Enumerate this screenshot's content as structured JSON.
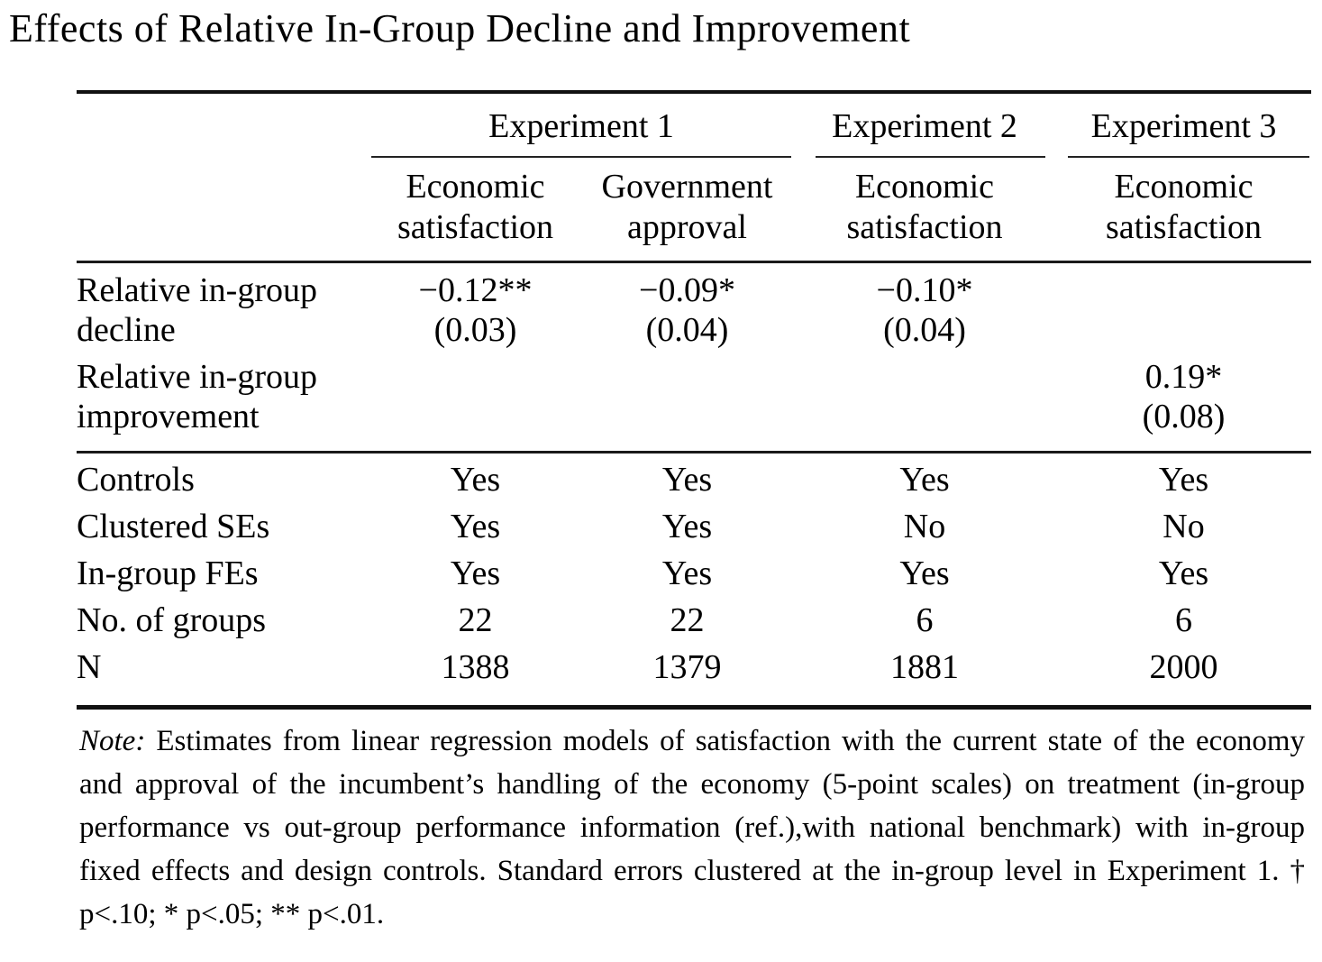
{
  "title": "Effects of Relative In-Group Decline and Improvement",
  "colors": {
    "text": "#000000",
    "background": "#ffffff",
    "rule": "#111111"
  },
  "table": {
    "experiment_groups": [
      {
        "label": "Experiment 1"
      },
      {
        "label": "Experiment 2"
      },
      {
        "label": "Experiment 3"
      }
    ],
    "column_headers": [
      {
        "line1": "Economic",
        "line2": "satisfaction"
      },
      {
        "line1": "Government",
        "line2": "approval"
      },
      {
        "line1": "Economic",
        "line2": "satisfaction"
      },
      {
        "line1": "Economic",
        "line2": "satisfaction"
      }
    ],
    "coefficient_rows": [
      {
        "label_line1": "Relative in-group",
        "label_line2": "decline",
        "cells": [
          {
            "estimate": "−0.12**",
            "se": "(0.03)"
          },
          {
            "estimate": "−0.09*",
            "se": "(0.04)"
          },
          {
            "estimate": "−0.10*",
            "se": "(0.04)"
          },
          {
            "estimate": "",
            "se": ""
          }
        ]
      },
      {
        "label_line1": "Relative in-group",
        "label_line2": "improvement",
        "cells": [
          {
            "estimate": "",
            "se": ""
          },
          {
            "estimate": "",
            "se": ""
          },
          {
            "estimate": "",
            "se": ""
          },
          {
            "estimate": "0.19*",
            "se": "(0.08)"
          }
        ]
      }
    ],
    "summary_rows": [
      {
        "label": "Controls",
        "values": [
          "Yes",
          "Yes",
          "Yes",
          "Yes"
        ]
      },
      {
        "label": "Clustered SEs",
        "values": [
          "Yes",
          "Yes",
          "No",
          "No"
        ]
      },
      {
        "label": "In-group FEs",
        "values": [
          "Yes",
          "Yes",
          "Yes",
          "Yes"
        ]
      },
      {
        "label": "No. of groups",
        "values": [
          "22",
          "22",
          "6",
          "6"
        ]
      },
      {
        "label": "N",
        "values": [
          "1388",
          "1379",
          "1881",
          "2000"
        ]
      }
    ]
  },
  "note": {
    "label": "Note:",
    "text": "Estimates from linear regression models of satisfaction with the current state of the economy and approval of the incumbent’s handling of the economy (5-point scales) on treatment (in-group performance vs out-group performance information (ref.),with national benchmark) with in-group fixed effects and design controls. Standard errors clustered at the in-group level in Experiment 1. † p<.10; * p<.05; ** p<.01."
  }
}
